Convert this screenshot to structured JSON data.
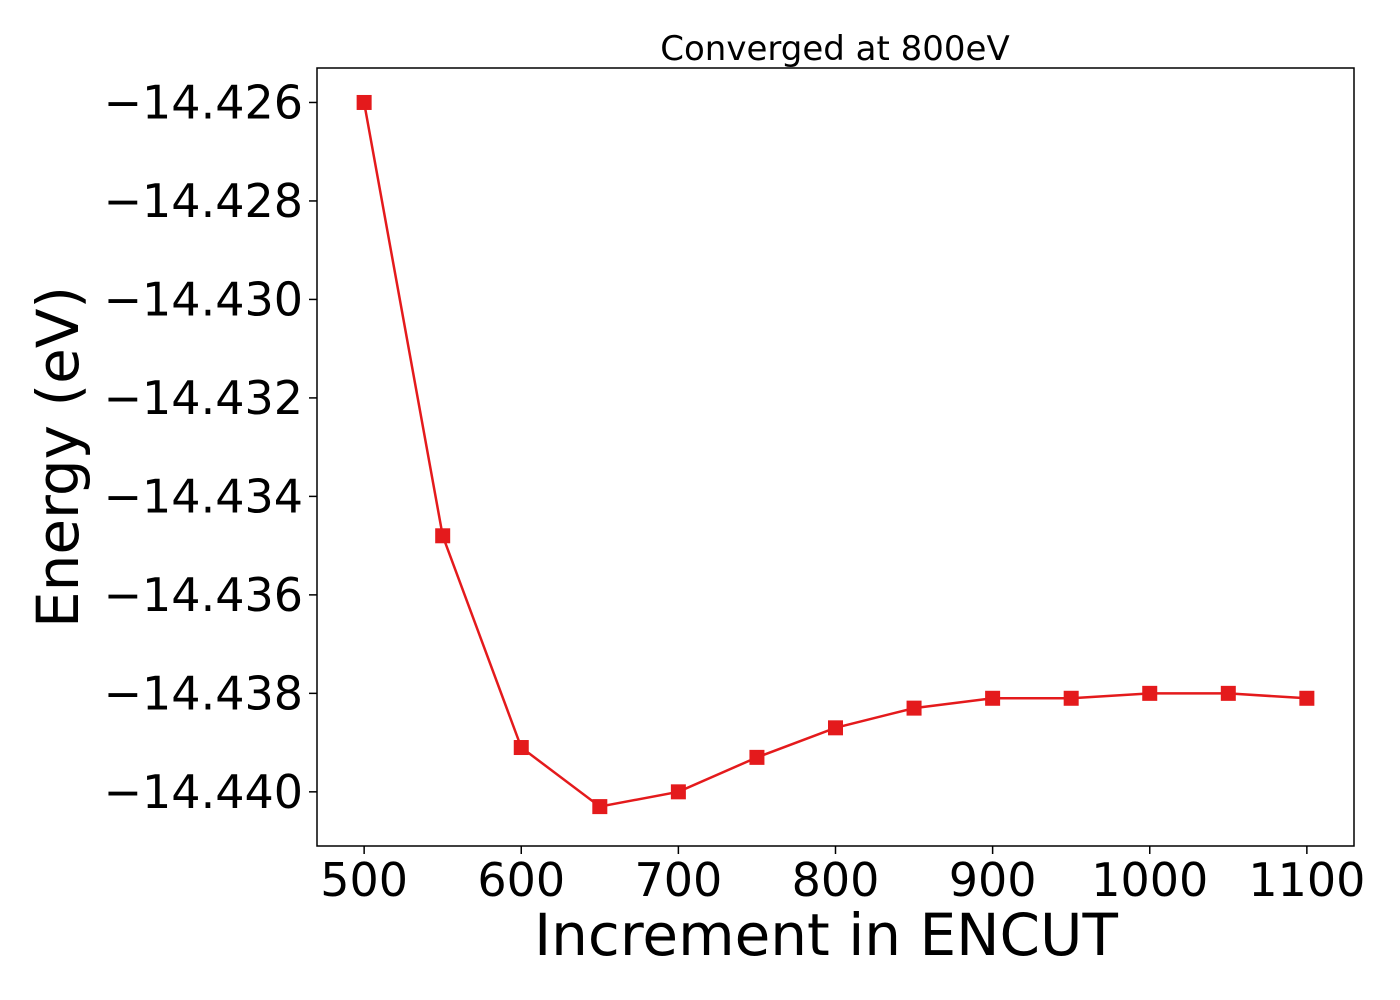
{
  "chart_data": {
    "type": "line",
    "title": "Converged at 800eV",
    "xlabel": "Increment in ENCUT",
    "ylabel": "Energy (eV)",
    "x": [
      500,
      550,
      600,
      650,
      700,
      750,
      800,
      850,
      900,
      950,
      1000,
      1050,
      1100
    ],
    "series": [
      {
        "values": [
          -14.426,
          -14.4348,
          -14.4391,
          -14.4403,
          -14.44,
          -14.4393,
          -14.4387,
          -14.4383,
          -14.4381,
          -14.4381,
          -14.438,
          -14.438,
          -14.4381
        ],
        "color": "#e41a1c",
        "marker": "square"
      }
    ],
    "xlim": [
      470,
      1130
    ],
    "ylim": [
      -14.4411,
      -14.4253
    ],
    "xticks": [
      500,
      600,
      700,
      800,
      900,
      1000,
      1100
    ],
    "yticks": [
      -14.426,
      -14.428,
      -14.43,
      -14.432,
      -14.434,
      -14.436,
      -14.438,
      -14.44
    ],
    "ytick_labels": [
      "−14.426",
      "−14.428",
      "−14.430",
      "−14.432",
      "−14.434",
      "−14.436",
      "−14.438",
      "−14.440"
    ],
    "grid": false
  }
}
